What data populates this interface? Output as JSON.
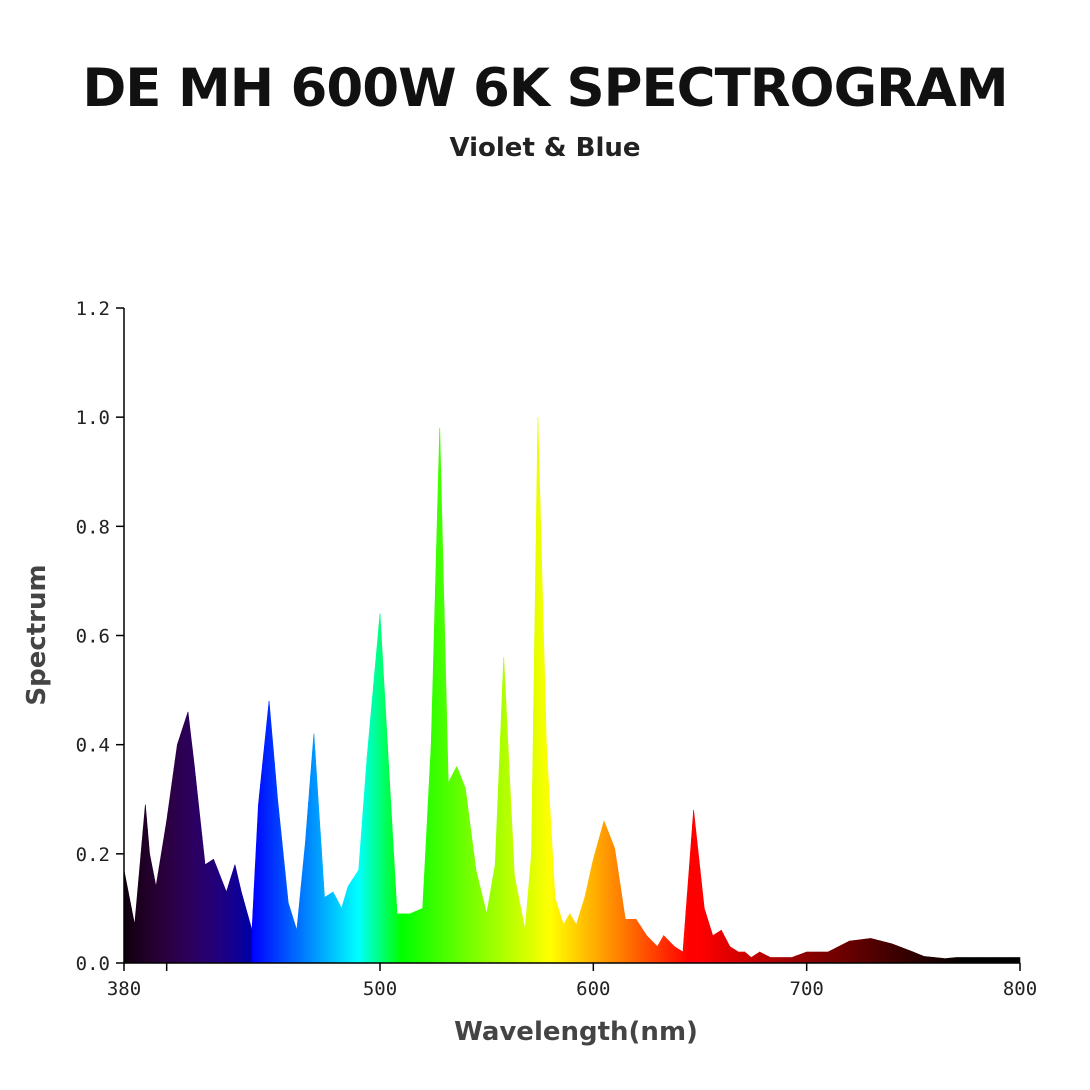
{
  "header": {
    "title": "DE MH 600W 6K SPECTROGRAM",
    "subtitle": "Violet & Blue"
  },
  "chart_data": {
    "type": "area",
    "title": "DE MH 600W 6K SPECTROGRAM",
    "subtitle": "Violet & Blue",
    "xlabel": "Wavelength(nm)",
    "ylabel": "Spectrum",
    "xlim": [
      380,
      800
    ],
    "ylim": [
      0,
      1.2
    ],
    "x_ticks": [
      380,
      400,
      500,
      600,
      700,
      800
    ],
    "x_tick_labels": [
      "380",
      "",
      "500",
      "600",
      "700",
      "800"
    ],
    "y_ticks": [
      0.0,
      0.2,
      0.4,
      0.6,
      0.8,
      1.0,
      1.2
    ],
    "y_tick_labels": [
      "0.0",
      "0.2",
      "0.4",
      "0.6",
      "0.8",
      "1.0",
      "1.2"
    ],
    "grid": false,
    "fill": "wavelength-colored spectrum",
    "series": [
      {
        "x": [
          380,
          385,
          390,
          392,
          395,
          400,
          405,
          410,
          413,
          418,
          422,
          428,
          432,
          435,
          440,
          443,
          448,
          452,
          457,
          461,
          465,
          469,
          474,
          478,
          482,
          485,
          490,
          494,
          500,
          508,
          512,
          514,
          520,
          524,
          528,
          532,
          536,
          540,
          545,
          550,
          554,
          558,
          563,
          568,
          571,
          574,
          578,
          582,
          586,
          589,
          592,
          596,
          600,
          605,
          610,
          615,
          620,
          625,
          630,
          633,
          638,
          642,
          647,
          652,
          656,
          660,
          664,
          668,
          671,
          674,
          678,
          683,
          688,
          693,
          700,
          710,
          720,
          730,
          740,
          750,
          755,
          760,
          765,
          770,
          775,
          780,
          785,
          790,
          795,
          800
        ],
        "y": [
          0.17,
          0.07,
          0.29,
          0.2,
          0.14,
          0.26,
          0.4,
          0.46,
          0.36,
          0.18,
          0.19,
          0.13,
          0.18,
          0.13,
          0.06,
          0.29,
          0.48,
          0.3,
          0.11,
          0.06,
          0.22,
          0.42,
          0.12,
          0.13,
          0.1,
          0.14,
          0.17,
          0.38,
          0.64,
          0.09,
          0.09,
          0.09,
          0.1,
          0.4,
          0.98,
          0.33,
          0.36,
          0.32,
          0.17,
          0.09,
          0.18,
          0.56,
          0.16,
          0.06,
          0.2,
          1.0,
          0.4,
          0.12,
          0.07,
          0.09,
          0.07,
          0.12,
          0.19,
          0.26,
          0.21,
          0.08,
          0.08,
          0.05,
          0.03,
          0.05,
          0.03,
          0.02,
          0.28,
          0.1,
          0.05,
          0.06,
          0.03,
          0.02,
          0.02,
          0.01,
          0.02,
          0.01,
          0.01,
          0.01,
          0.02,
          0.02,
          0.04,
          0.045,
          0.035,
          0.02,
          0.012,
          0.01,
          0.008,
          0.01,
          0.01,
          0.01,
          0.01,
          0.01,
          0.01,
          0.01
        ]
      }
    ]
  }
}
